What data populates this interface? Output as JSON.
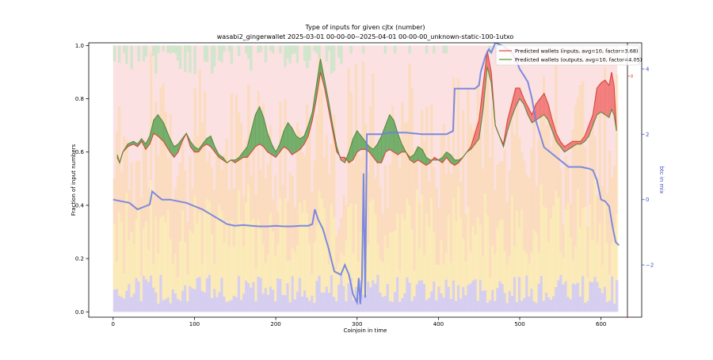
{
  "chart_data": {
    "type": "area",
    "title": "Type of inputs for given cjtx (number)",
    "subtitle": "wasabi2_gingerwallet 2025-03-01 00-00-00--2025-04-01 00-00-00_unknown-static-100-1utxo",
    "xlabel": "Coinjoin in time",
    "ylabel": "Fraction of input numbers",
    "y2label": "btc in mix",
    "xlim": [
      -30,
      650
    ],
    "ylim": [
      -0.02,
      1.01
    ],
    "y2lim": [
      -3.6,
      4.8
    ],
    "xticks": [
      "0",
      "100",
      "200",
      "300",
      "400",
      "500",
      "600"
    ],
    "yticks": [
      "0.0",
      "0.2",
      "0.4",
      "0.6",
      "0.8",
      "1.0"
    ],
    "y2ticks": [
      "−2",
      "0",
      "2",
      "4"
    ],
    "y3marks": [
      "8"
    ],
    "legend_position": "upper right",
    "legend": [
      {
        "label": "Predicted wallets (inputs, avg=10, factor=3.68)",
        "color": "#e8524a"
      },
      {
        "label": "Predicted wallets (outputs, avg=10, factor=4.05)",
        "color": "#5a9e4e"
      }
    ],
    "colors": {
      "inputs_line": "#d9463a",
      "outputs_line": "#5b8a3a",
      "fill_inputs_higher": "#f07070",
      "fill_outputs_higher": "#5fa65a",
      "btc_line": "#6f7fe0",
      "bg_pink": "#f7c9c9",
      "bg_green": "#c8e6c8",
      "bg_orange": "#fbd9a8",
      "bg_yellow": "#fbf0a0",
      "bg_blue": "#c8c8f5",
      "right_axis": "#4452c9",
      "third_axis": "#e04040"
    },
    "predicted_inputs": [
      [
        5,
        0.58
      ],
      [
        8,
        0.56
      ],
      [
        12,
        0.6
      ],
      [
        18,
        0.62
      ],
      [
        25,
        0.63
      ],
      [
        30,
        0.62
      ],
      [
        35,
        0.64
      ],
      [
        40,
        0.61
      ],
      [
        45,
        0.63
      ],
      [
        50,
        0.67
      ],
      [
        55,
        0.66
      ],
      [
        62,
        0.64
      ],
      [
        70,
        0.6
      ],
      [
        75,
        0.58
      ],
      [
        80,
        0.6
      ],
      [
        85,
        0.64
      ],
      [
        90,
        0.67
      ],
      [
        95,
        0.62
      ],
      [
        100,
        0.6
      ],
      [
        105,
        0.6
      ],
      [
        110,
        0.62
      ],
      [
        115,
        0.63
      ],
      [
        120,
        0.62
      ],
      [
        125,
        0.6
      ],
      [
        130,
        0.58
      ],
      [
        135,
        0.57
      ],
      [
        140,
        0.56
      ],
      [
        145,
        0.57
      ],
      [
        150,
        0.56
      ],
      [
        155,
        0.57
      ],
      [
        160,
        0.58
      ],
      [
        165,
        0.58
      ],
      [
        170,
        0.6
      ],
      [
        175,
        0.62
      ],
      [
        180,
        0.63
      ],
      [
        185,
        0.62
      ],
      [
        190,
        0.6
      ],
      [
        195,
        0.59
      ],
      [
        200,
        0.58
      ],
      [
        205,
        0.6
      ],
      [
        210,
        0.62
      ],
      [
        215,
        0.61
      ],
      [
        220,
        0.59
      ],
      [
        225,
        0.6
      ],
      [
        230,
        0.61
      ],
      [
        235,
        0.63
      ],
      [
        240,
        0.66
      ],
      [
        245,
        0.72
      ],
      [
        250,
        0.8
      ],
      [
        255,
        0.9
      ],
      [
        260,
        0.84
      ],
      [
        265,
        0.76
      ],
      [
        270,
        0.68
      ],
      [
        275,
        0.6
      ],
      [
        280,
        0.58
      ],
      [
        285,
        0.58
      ],
      [
        290,
        0.56
      ],
      [
        295,
        0.57
      ],
      [
        300,
        0.6
      ],
      [
        305,
        0.61
      ],
      [
        310,
        0.61
      ],
      [
        315,
        0.6
      ],
      [
        320,
        0.58
      ],
      [
        325,
        0.56
      ],
      [
        330,
        0.56
      ],
      [
        335,
        0.6
      ],
      [
        340,
        0.61
      ],
      [
        345,
        0.6
      ],
      [
        350,
        0.59
      ],
      [
        355,
        0.6
      ],
      [
        360,
        0.6
      ],
      [
        365,
        0.57
      ],
      [
        370,
        0.56
      ],
      [
        375,
        0.57
      ],
      [
        380,
        0.56
      ],
      [
        385,
        0.55
      ],
      [
        390,
        0.56
      ],
      [
        395,
        0.58
      ],
      [
        400,
        0.57
      ],
      [
        405,
        0.56
      ],
      [
        410,
        0.58
      ],
      [
        415,
        0.56
      ],
      [
        420,
        0.55
      ],
      [
        425,
        0.56
      ],
      [
        430,
        0.58
      ],
      [
        435,
        0.6
      ],
      [
        440,
        0.62
      ],
      [
        445,
        0.67
      ],
      [
        450,
        0.72
      ],
      [
        455,
        0.85
      ],
      [
        460,
        0.98
      ],
      [
        465,
        0.9
      ],
      [
        470,
        0.7
      ],
      [
        475,
        0.66
      ],
      [
        480,
        0.63
      ],
      [
        485,
        0.72
      ],
      [
        490,
        0.78
      ],
      [
        495,
        0.84
      ],
      [
        500,
        0.84
      ],
      [
        505,
        0.8
      ],
      [
        510,
        0.77
      ],
      [
        515,
        0.74
      ],
      [
        520,
        0.78
      ],
      [
        525,
        0.8
      ],
      [
        530,
        0.82
      ],
      [
        535,
        0.78
      ],
      [
        540,
        0.72
      ],
      [
        545,
        0.67
      ],
      [
        550,
        0.64
      ],
      [
        555,
        0.62
      ],
      [
        560,
        0.63
      ],
      [
        565,
        0.64
      ],
      [
        570,
        0.64
      ],
      [
        575,
        0.64
      ],
      [
        580,
        0.66
      ],
      [
        585,
        0.7
      ],
      [
        590,
        0.74
      ],
      [
        595,
        0.84
      ],
      [
        600,
        0.86
      ],
      [
        605,
        0.87
      ],
      [
        610,
        0.85
      ],
      [
        613,
        0.9
      ],
      [
        616,
        0.85
      ],
      [
        619,
        0.68
      ]
    ],
    "predicted_outputs": [
      [
        5,
        0.59
      ],
      [
        8,
        0.56
      ],
      [
        12,
        0.6
      ],
      [
        18,
        0.63
      ],
      [
        25,
        0.64
      ],
      [
        30,
        0.63
      ],
      [
        35,
        0.65
      ],
      [
        40,
        0.63
      ],
      [
        45,
        0.66
      ],
      [
        50,
        0.72
      ],
      [
        55,
        0.74
      ],
      [
        62,
        0.71
      ],
      [
        70,
        0.65
      ],
      [
        75,
        0.62
      ],
      [
        80,
        0.63
      ],
      [
        85,
        0.65
      ],
      [
        90,
        0.67
      ],
      [
        95,
        0.64
      ],
      [
        100,
        0.62
      ],
      [
        105,
        0.61
      ],
      [
        110,
        0.63
      ],
      [
        115,
        0.65
      ],
      [
        120,
        0.66
      ],
      [
        125,
        0.62
      ],
      [
        130,
        0.59
      ],
      [
        135,
        0.58
      ],
      [
        140,
        0.56
      ],
      [
        145,
        0.57
      ],
      [
        150,
        0.57
      ],
      [
        155,
        0.58
      ],
      [
        160,
        0.6
      ],
      [
        165,
        0.62
      ],
      [
        170,
        0.68
      ],
      [
        175,
        0.74
      ],
      [
        180,
        0.77
      ],
      [
        185,
        0.73
      ],
      [
        190,
        0.67
      ],
      [
        195,
        0.63
      ],
      [
        200,
        0.6
      ],
      [
        205,
        0.63
      ],
      [
        210,
        0.68
      ],
      [
        215,
        0.71
      ],
      [
        220,
        0.69
      ],
      [
        225,
        0.66
      ],
      [
        230,
        0.65
      ],
      [
        235,
        0.66
      ],
      [
        240,
        0.7
      ],
      [
        245,
        0.75
      ],
      [
        250,
        0.85
      ],
      [
        255,
        0.95
      ],
      [
        260,
        0.87
      ],
      [
        265,
        0.79
      ],
      [
        270,
        0.7
      ],
      [
        275,
        0.62
      ],
      [
        280,
        0.57
      ],
      [
        285,
        0.56
      ],
      [
        290,
        0.6
      ],
      [
        295,
        0.65
      ],
      [
        300,
        0.68
      ],
      [
        305,
        0.66
      ],
      [
        310,
        0.64
      ],
      [
        315,
        0.62
      ],
      [
        320,
        0.61
      ],
      [
        325,
        0.63
      ],
      [
        330,
        0.66
      ],
      [
        335,
        0.7
      ],
      [
        340,
        0.74
      ],
      [
        345,
        0.72
      ],
      [
        350,
        0.67
      ],
      [
        355,
        0.63
      ],
      [
        360,
        0.6
      ],
      [
        365,
        0.58
      ],
      [
        370,
        0.59
      ],
      [
        375,
        0.62
      ],
      [
        380,
        0.61
      ],
      [
        385,
        0.58
      ],
      [
        390,
        0.57
      ],
      [
        395,
        0.57
      ],
      [
        400,
        0.57
      ],
      [
        405,
        0.58
      ],
      [
        410,
        0.6
      ],
      [
        415,
        0.59
      ],
      [
        420,
        0.57
      ],
      [
        425,
        0.57
      ],
      [
        430,
        0.58
      ],
      [
        435,
        0.6
      ],
      [
        440,
        0.61
      ],
      [
        445,
        0.63
      ],
      [
        450,
        0.65
      ],
      [
        455,
        0.76
      ],
      [
        460,
        0.92
      ],
      [
        465,
        0.86
      ],
      [
        470,
        0.7
      ],
      [
        475,
        0.66
      ],
      [
        480,
        0.62
      ],
      [
        485,
        0.68
      ],
      [
        490,
        0.73
      ],
      [
        495,
        0.77
      ],
      [
        500,
        0.8
      ],
      [
        505,
        0.78
      ],
      [
        510,
        0.74
      ],
      [
        515,
        0.71
      ],
      [
        520,
        0.72
      ],
      [
        525,
        0.73
      ],
      [
        530,
        0.74
      ],
      [
        535,
        0.72
      ],
      [
        540,
        0.68
      ],
      [
        545,
        0.64
      ],
      [
        550,
        0.62
      ],
      [
        555,
        0.6
      ],
      [
        560,
        0.61
      ],
      [
        565,
        0.62
      ],
      [
        570,
        0.63
      ],
      [
        575,
        0.63
      ],
      [
        580,
        0.64
      ],
      [
        585,
        0.66
      ],
      [
        590,
        0.7
      ],
      [
        595,
        0.74
      ],
      [
        600,
        0.75
      ],
      [
        605,
        0.74
      ],
      [
        610,
        0.73
      ],
      [
        613,
        0.76
      ],
      [
        616,
        0.74
      ],
      [
        619,
        0.68
      ]
    ],
    "btc_in_mix": [
      [
        0,
        0.0
      ],
      [
        10,
        -0.05
      ],
      [
        20,
        -0.1
      ],
      [
        30,
        -0.3
      ],
      [
        35,
        -0.25
      ],
      [
        40,
        -0.2
      ],
      [
        45,
        -0.15
      ],
      [
        48,
        0.25
      ],
      [
        55,
        0.1
      ],
      [
        60,
        0.0
      ],
      [
        70,
        0.0
      ],
      [
        80,
        -0.05
      ],
      [
        90,
        -0.1
      ],
      [
        100,
        -0.2
      ],
      [
        110,
        -0.3
      ],
      [
        120,
        -0.45
      ],
      [
        130,
        -0.6
      ],
      [
        140,
        -0.75
      ],
      [
        150,
        -0.8
      ],
      [
        160,
        -0.78
      ],
      [
        170,
        -0.8
      ],
      [
        180,
        -0.82
      ],
      [
        190,
        -0.82
      ],
      [
        200,
        -0.8
      ],
      [
        210,
        -0.82
      ],
      [
        220,
        -0.82
      ],
      [
        230,
        -0.8
      ],
      [
        240,
        -0.8
      ],
      [
        245,
        -0.75
      ],
      [
        248,
        -0.3
      ],
      [
        252,
        -0.6
      ],
      [
        258,
        -0.9
      ],
      [
        265,
        -1.5
      ],
      [
        272,
        -2.2
      ],
      [
        280,
        -2.3
      ],
      [
        285,
        -2.0
      ],
      [
        290,
        -2.3
      ],
      [
        295,
        -2.9
      ],
      [
        300,
        -3.15
      ],
      [
        302,
        -2.4
      ],
      [
        304,
        -3.2
      ],
      [
        306,
        -2.4
      ],
      [
        308,
        0.8
      ],
      [
        310,
        -3.0
      ],
      [
        312,
        2.0
      ],
      [
        320,
        2.0
      ],
      [
        330,
        2.0
      ],
      [
        340,
        2.05
      ],
      [
        360,
        2.05
      ],
      [
        380,
        2.0
      ],
      [
        400,
        2.0
      ],
      [
        410,
        2.0
      ],
      [
        418,
        2.1
      ],
      [
        420,
        3.4
      ],
      [
        440,
        3.4
      ],
      [
        445,
        3.4
      ],
      [
        450,
        3.5
      ],
      [
        452,
        3.9
      ],
      [
        458,
        4.4
      ],
      [
        462,
        4.6
      ],
      [
        465,
        4.5
      ],
      [
        470,
        4.8
      ],
      [
        480,
        4.7
      ],
      [
        490,
        4.5
      ],
      [
        495,
        4.3
      ],
      [
        500,
        4.0
      ],
      [
        505,
        3.8
      ],
      [
        510,
        3.6
      ],
      [
        515,
        3.1
      ],
      [
        520,
        2.4
      ],
      [
        525,
        2.0
      ],
      [
        530,
        1.6
      ],
      [
        535,
        1.5
      ],
      [
        540,
        1.4
      ],
      [
        550,
        1.2
      ],
      [
        560,
        1.0
      ],
      [
        575,
        1.0
      ],
      [
        585,
        0.95
      ],
      [
        590,
        0.9
      ],
      [
        595,
        0.6
      ],
      [
        600,
        0.0
      ],
      [
        605,
        -0.05
      ],
      [
        610,
        -0.2
      ],
      [
        614,
        -0.8
      ],
      [
        618,
        -1.3
      ],
      [
        622,
        -1.4
      ]
    ]
  }
}
